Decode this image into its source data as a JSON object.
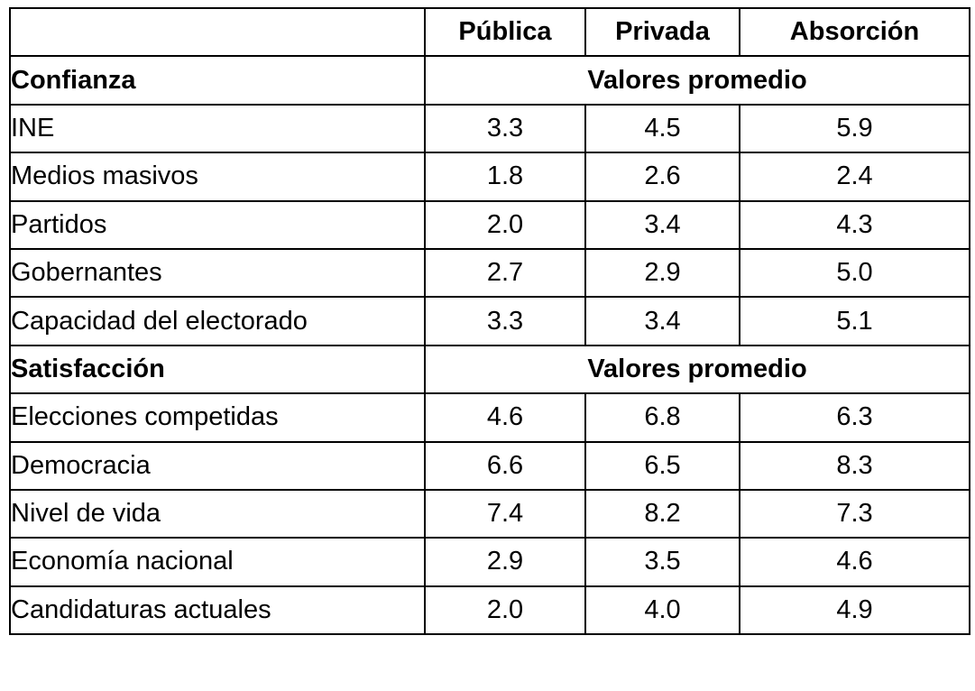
{
  "header": {
    "corner": "",
    "columns": [
      "Pública",
      "Privada",
      "Absorción"
    ]
  },
  "sections": [
    {
      "title": "Confianza",
      "span_label": "Valores promedio",
      "rows": [
        {
          "label": "INE",
          "values": [
            "3.3",
            "4.5",
            "5.9"
          ]
        },
        {
          "label": "Medios masivos",
          "values": [
            "1.8",
            "2.6",
            "2.4"
          ]
        },
        {
          "label": "Partidos",
          "values": [
            "2.0",
            "3.4",
            "4.3"
          ]
        },
        {
          "label": "Gobernantes",
          "values": [
            "2.7",
            "2.9",
            "5.0"
          ]
        },
        {
          "label": "Capacidad del electorado",
          "values": [
            "3.3",
            "3.4",
            "5.1"
          ]
        }
      ]
    },
    {
      "title": "Satisfacción",
      "span_label": "Valores promedio",
      "rows": [
        {
          "label": "Elecciones competidas",
          "values": [
            "4.6",
            "6.8",
            "6.3"
          ]
        },
        {
          "label": "Democracia",
          "values": [
            "6.6",
            "6.5",
            "8.3"
          ]
        },
        {
          "label": "Nivel de vida",
          "values": [
            "7.4",
            "8.2",
            "7.3"
          ]
        },
        {
          "label": "Economía nacional",
          "values": [
            "2.9",
            "3.5",
            "4.6"
          ]
        },
        {
          "label": "Candidaturas actuales",
          "values": [
            "2.0",
            "4.0",
            "4.9"
          ]
        }
      ]
    }
  ]
}
